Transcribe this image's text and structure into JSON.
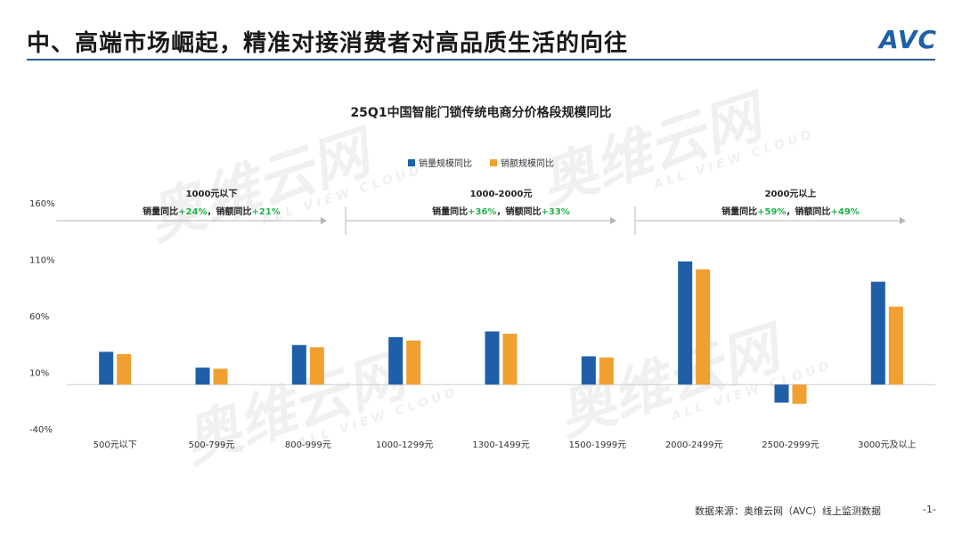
{
  "page": {
    "title": "中、高端市场崛起，精准对接消费者对高品质生活的向往",
    "logo_main": "AVC",
    "logo_accent": "●",
    "watermark": "奥维云网",
    "watermark_sub": "ALL VIEW CLOUD",
    "source": "数据来源：奥维云网（AVC）线上监测数据",
    "page_number": "-1-"
  },
  "chart_data": {
    "type": "bar",
    "title": "25Q1中国智能门锁传统电商分价格段规模同比",
    "categories": [
      "500元以下",
      "500-799元",
      "800-999元",
      "1000-1299元",
      "1300-1499元",
      "1500-1999元",
      "2000-2499元",
      "2500-2999元",
      "3000元及以上"
    ],
    "series": [
      {
        "name": "销量规模同比",
        "color": "#1f5fa8",
        "values": [
          29,
          15,
          35,
          42,
          47,
          25,
          109,
          -16,
          91
        ]
      },
      {
        "name": "销额规模同比",
        "color": "#f0a030",
        "values": [
          27,
          14,
          33,
          39,
          45,
          24,
          102,
          -17,
          69
        ]
      }
    ],
    "ylim": [
      -40,
      160
    ],
    "yticks": [
      "160%",
      "110%",
      "60%",
      "10%",
      "-40%"
    ],
    "legend_position": "top",
    "grid": false,
    "segments": [
      {
        "label": "1000元以下",
        "summary_prefix": "销量同比",
        "summary_volume": "+24%",
        "summary_mid": "，销额同比",
        "summary_value": "+21%",
        "from_cat": 0,
        "to_cat": 2
      },
      {
        "label": "1000-2000元",
        "summary_prefix": "销量同比",
        "summary_volume": "+36%",
        "summary_mid": "，销额同比",
        "summary_value": "+33%",
        "from_cat": 3,
        "to_cat": 5
      },
      {
        "label": "2000元以上",
        "summary_prefix": "销量同比",
        "summary_volume": "+59%",
        "summary_mid": "，销额同比",
        "summary_value": "+49%",
        "from_cat": 6,
        "to_cat": 8
      }
    ],
    "highlight_color": "#22b14c"
  }
}
